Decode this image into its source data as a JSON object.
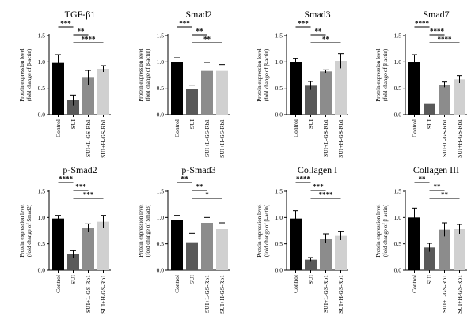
{
  "categories": [
    "Control",
    "SUI",
    "SUI+L-GS-Rb1",
    "SUI+H-GS-Rb1"
  ],
  "bar_colors": [
    "#000000",
    "#595959",
    "#8c8c8c",
    "#d0d0d0"
  ],
  "chart_data": [
    {
      "type": "bar",
      "title": "TGF-β1",
      "ylabel": [
        "Protein expression level",
        "(fold change of β-actin)"
      ],
      "ylim": [
        0,
        1.5
      ],
      "yticks": [
        "0.0",
        "0.5",
        "1.0",
        "1.5"
      ],
      "categories": [
        "Control",
        "SUI",
        "SUI+L-GS-Rb1",
        "SUI+H-GS-Rb1"
      ],
      "values": [
        0.98,
        0.27,
        0.7,
        0.87
      ],
      "errors": [
        0.16,
        0.1,
        0.14,
        0.06
      ],
      "brackets": [
        {
          "from": 0,
          "to": 1,
          "label": "***",
          "level": 1
        },
        {
          "from": 1,
          "to": 2,
          "label": "**",
          "level": 2
        },
        {
          "from": 1,
          "to": 3,
          "label": "****",
          "level": 3
        }
      ]
    },
    {
      "type": "bar",
      "title": "Smad2",
      "ylabel": [
        "Protein expression level",
        "(fold change of β-actin)"
      ],
      "ylim": [
        0,
        1.5
      ],
      "yticks": [
        "0.0",
        "0.5",
        "1.0",
        "1.5"
      ],
      "categories": [
        "Control",
        "SUI",
        "SUI+L-GS-Rb1",
        "SUI+H-GS-Rb1"
      ],
      "values": [
        1.0,
        0.48,
        0.83,
        0.83
      ],
      "errors": [
        0.08,
        0.08,
        0.16,
        0.12
      ],
      "brackets": [
        {
          "from": 0,
          "to": 1,
          "label": "***",
          "level": 1
        },
        {
          "from": 1,
          "to": 2,
          "label": "**",
          "level": 2
        },
        {
          "from": 1,
          "to": 3,
          "label": "**",
          "level": 3
        }
      ]
    },
    {
      "type": "bar",
      "title": "Smad3",
      "ylabel": [
        "Protein expression level",
        "(fold change of β-actin)"
      ],
      "ylim": [
        0,
        1.5
      ],
      "yticks": [
        "0.0",
        "0.5",
        "1.0",
        "1.5"
      ],
      "categories": [
        "Control",
        "SUI",
        "SUI+L-GS-Rb1",
        "SUI+H-GS-Rb1"
      ],
      "values": [
        1.0,
        0.55,
        0.82,
        1.02
      ],
      "errors": [
        0.06,
        0.08,
        0.03,
        0.14
      ],
      "brackets": [
        {
          "from": 0,
          "to": 1,
          "label": "***",
          "level": 1
        },
        {
          "from": 1,
          "to": 2,
          "label": "**",
          "level": 2
        },
        {
          "from": 1,
          "to": 3,
          "label": "**",
          "level": 3
        }
      ]
    },
    {
      "type": "bar",
      "title": "Smad7",
      "ylabel": [
        "Protein expression level",
        "(fold change of β-actin)"
      ],
      "ylim": [
        0,
        1.5
      ],
      "yticks": [
        "0.0",
        "0.5",
        "1.0",
        "1.5"
      ],
      "categories": [
        "Control",
        "SUI",
        "SUI+L-GS-Rb1",
        "SUI+H-GS-Rb1"
      ],
      "values": [
        1.0,
        0.2,
        0.57,
        0.67
      ],
      "errors": [
        0.14,
        0.0,
        0.05,
        0.07
      ],
      "brackets": [
        {
          "from": 0,
          "to": 1,
          "label": "****",
          "level": 1
        },
        {
          "from": 1,
          "to": 2,
          "label": "****",
          "level": 2
        },
        {
          "from": 1,
          "to": 3,
          "label": "****",
          "level": 3
        }
      ]
    },
    {
      "type": "bar",
      "title": "p-Smad2",
      "ylabel": [
        "Protein expression level",
        "(fold change of Smad2)"
      ],
      "ylim": [
        0,
        1.5
      ],
      "yticks": [
        "0.0",
        "0.5",
        "1.0",
        "1.5"
      ],
      "categories": [
        "Control",
        "SUI",
        "SUI+L-GS-Rb1",
        "SUI+H-GS-Rb1"
      ],
      "values": [
        0.98,
        0.3,
        0.8,
        0.92
      ],
      "errors": [
        0.06,
        0.07,
        0.08,
        0.12
      ],
      "brackets": [
        {
          "from": 0,
          "to": 1,
          "label": "****",
          "level": 1
        },
        {
          "from": 1,
          "to": 2,
          "label": "***",
          "level": 2
        },
        {
          "from": 1,
          "to": 3,
          "label": "***",
          "level": 3
        }
      ]
    },
    {
      "type": "bar",
      "title": "p-Smad3",
      "ylabel": [
        "Protein expression level",
        "(fold change of Smad3)"
      ],
      "ylim": [
        0,
        1.5
      ],
      "yticks": [
        "0.0",
        "0.5",
        "1.0",
        "1.5"
      ],
      "categories": [
        "Control",
        "SUI",
        "SUI+L-GS-Rb1",
        "SUI+H-GS-Rb1"
      ],
      "values": [
        0.96,
        0.53,
        0.9,
        0.78
      ],
      "errors": [
        0.08,
        0.17,
        0.1,
        0.12
      ],
      "brackets": [
        {
          "from": 0,
          "to": 1,
          "label": "**",
          "level": 1
        },
        {
          "from": 1,
          "to": 2,
          "label": "**",
          "level": 2
        },
        {
          "from": 1,
          "to": 3,
          "label": "*",
          "level": 3
        }
      ]
    },
    {
      "type": "bar",
      "title": "Collagen I",
      "ylabel": [
        "Protein expression level",
        "(fold change of β-actin)"
      ],
      "ylim": [
        0,
        1.5
      ],
      "yticks": [
        "0.0",
        "0.5",
        "1.0",
        "1.5"
      ],
      "categories": [
        "Control",
        "SUI",
        "SUI+L-GS-Rb1",
        "SUI+H-GS-Rb1"
      ],
      "values": [
        0.98,
        0.2,
        0.6,
        0.65
      ],
      "errors": [
        0.15,
        0.04,
        0.09,
        0.08
      ],
      "brackets": [
        {
          "from": 0,
          "to": 1,
          "label": "****",
          "level": 1
        },
        {
          "from": 1,
          "to": 2,
          "label": "***",
          "level": 2
        },
        {
          "from": 1,
          "to": 3,
          "label": "****",
          "level": 3
        }
      ]
    },
    {
      "type": "bar",
      "title": "Collagen III",
      "ylabel": [
        "Protein expression level",
        "(fold change of β-actin)"
      ],
      "ylim": [
        0,
        1.5
      ],
      "yticks": [
        "0.0",
        "0.5",
        "1.0",
        "1.5"
      ],
      "categories": [
        "Control",
        "SUI",
        "SUI+L-GS-Rb1",
        "SUI+H-GS-Rb1"
      ],
      "values": [
        1.0,
        0.43,
        0.77,
        0.78
      ],
      "errors": [
        0.18,
        0.08,
        0.13,
        0.09
      ],
      "brackets": [
        {
          "from": 0,
          "to": 1,
          "label": "**",
          "level": 1
        },
        {
          "from": 1,
          "to": 2,
          "label": "**",
          "level": 2
        },
        {
          "from": 1,
          "to": 3,
          "label": "**",
          "level": 3
        }
      ]
    }
  ]
}
